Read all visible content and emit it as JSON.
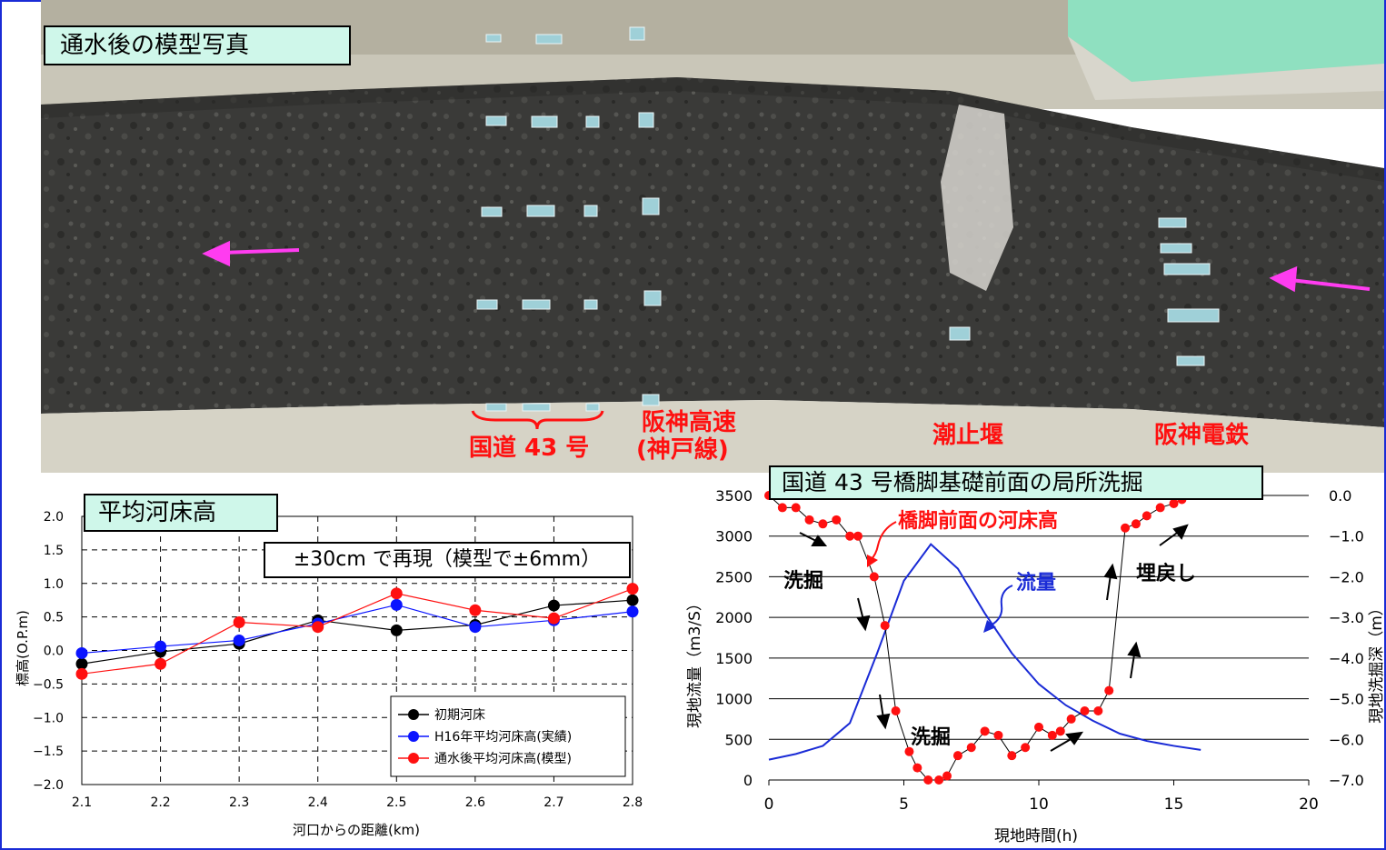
{
  "photo": {
    "title": "通水後の模型写真",
    "labels": {
      "route43": "国道 43 号",
      "hanshin_expressway_1": "阪神高速",
      "hanshin_expressway_2": "(神戸線)",
      "tide_weir": "潮止堰",
      "hanshin_railway": "阪神電鉄"
    },
    "colors": {
      "arrow": "#ff3cf0",
      "label": "#ff1010",
      "frame": "#1a2bd6"
    }
  },
  "chart_data": [
    {
      "type": "line",
      "title": "平均河床高",
      "annotation": "±30cm で再現（模型で±6mm）",
      "xlabel": "河口からの距離(km)",
      "ylabel": "標高(O.P.m)",
      "x": [
        2.1,
        2.2,
        2.3,
        2.4,
        2.5,
        2.6,
        2.7,
        2.8
      ],
      "xlim": [
        2.1,
        2.8
      ],
      "ylim": [
        -2.0,
        2.0
      ],
      "x_ticks": [
        "2.1",
        "2.2",
        "2.3",
        "2.4",
        "2.5",
        "2.6",
        "2.7",
        "2.8"
      ],
      "y_ticks": [
        "2.0",
        "1.5",
        "1.0",
        "0.5",
        "0.0",
        "−0.5",
        "−1.0",
        "−1.5",
        "−2.0"
      ],
      "grid": true,
      "legend_position": "bottom-right",
      "series": [
        {
          "name": "初期河床",
          "color": "#000000",
          "values": [
            -0.2,
            -0.02,
            0.1,
            0.45,
            0.3,
            0.38,
            0.67,
            0.75
          ]
        },
        {
          "name": "H16年平均河床高(実績)",
          "color": "#0a14ff",
          "values": [
            -0.04,
            0.06,
            0.15,
            0.4,
            0.68,
            0.35,
            0.45,
            0.58
          ]
        },
        {
          "name": "通水後平均河床高(模型)",
          "color": "#ff1010",
          "values": [
            -0.35,
            -0.2,
            0.42,
            0.35,
            0.85,
            0.6,
            0.48,
            0.92
          ]
        }
      ]
    },
    {
      "type": "line",
      "title": "国道 43 号橋脚基礎前面の局所洗掘",
      "xlabel": "現地時間(h)",
      "ylabel_left": "現地流量（m3/S）",
      "ylabel_right": "現地洗掘深（m）",
      "xlim": [
        0,
        20
      ],
      "ylim_left": [
        0,
        3500
      ],
      "ylim_right": [
        -7.0,
        0.0
      ],
      "x_ticks": [
        "0",
        "5",
        "10",
        "15",
        "20"
      ],
      "y_ticks_left": [
        "3500",
        "3000",
        "2500",
        "2000",
        "1500",
        "1000",
        "500",
        "0"
      ],
      "y_ticks_right": [
        "0.0",
        "−1.0",
        "−2.0",
        "−3.0",
        "−4.0",
        "−5.0",
        "−6.0",
        "−7.0"
      ],
      "grid": true,
      "annotations": {
        "bed": "橋脚前面の河床高",
        "flow": "流量",
        "scour1": "洗掘",
        "scour2": "洗掘",
        "backfill": "埋戻し"
      },
      "series": [
        {
          "name": "流量",
          "color": "#1a2bd6",
          "axis": "left",
          "x": [
            0,
            1,
            2,
            3,
            4,
            5,
            6,
            7,
            8,
            9,
            10,
            11,
            12,
            13,
            14,
            15,
            16
          ],
          "values": [
            250,
            320,
            420,
            700,
            1550,
            2450,
            2900,
            2600,
            2050,
            1560,
            1180,
            920,
            730,
            570,
            480,
            420,
            370
          ]
        },
        {
          "name": "橋脚前面の河床高",
          "color": "#ff1010",
          "axis": "right",
          "x": [
            0,
            0.5,
            1,
            1.5,
            2,
            2.5,
            3,
            3.3,
            3.9,
            4.3,
            4.7,
            5.2,
            5.5,
            5.9,
            6.3,
            6.6,
            7.0,
            7.5,
            8.0,
            8.5,
            9.0,
            9.5,
            10.0,
            10.5,
            10.8,
            11.2,
            11.7,
            12.2,
            12.6,
            13.2,
            13.6,
            14.0,
            14.5,
            15.0,
            15.3
          ],
          "values": [
            0.0,
            -0.3,
            -0.3,
            -0.6,
            -0.7,
            -0.6,
            -1.0,
            -1.0,
            -2.0,
            -3.2,
            -5.3,
            -6.3,
            -6.7,
            -7.0,
            -7.0,
            -6.9,
            -6.4,
            -6.2,
            -5.8,
            -5.9,
            -6.4,
            -6.2,
            -5.7,
            -5.9,
            -5.8,
            -5.5,
            -5.3,
            -5.3,
            -4.8,
            -0.8,
            -0.7,
            -0.5,
            -0.3,
            -0.2,
            -0.1
          ]
        }
      ]
    }
  ]
}
